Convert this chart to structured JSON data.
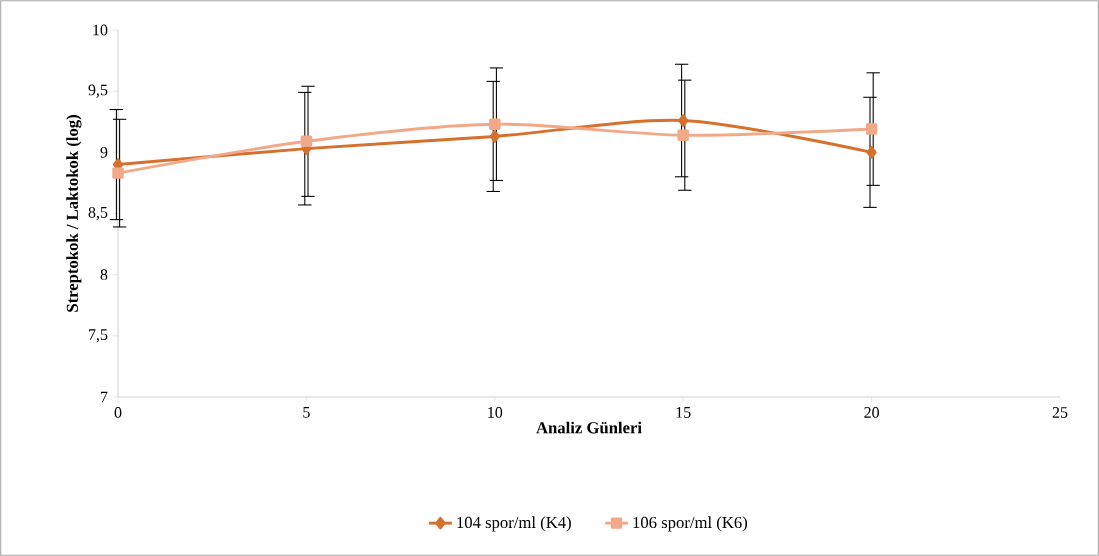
{
  "chart_data": {
    "type": "line",
    "xlabel": "Analiz Günleri",
    "ylabel": "Streptokok / Laktokok (log)",
    "x": [
      0,
      5,
      10,
      15,
      20
    ],
    "series": [
      {
        "name": "104 spor/ml (K4)",
        "color": "#d5702d",
        "marker": "diamond",
        "values": [
          8.9,
          9.03,
          9.13,
          9.26,
          9.0
        ],
        "errors": [
          0.45,
          0.46,
          0.45,
          0.46,
          0.45
        ]
      },
      {
        "name": "106 spor/ml (K6)",
        "color": "#f2a989",
        "marker": "square",
        "values": [
          8.83,
          9.09,
          9.23,
          9.14,
          9.19
        ],
        "errors": [
          0.44,
          0.45,
          0.46,
          0.45,
          0.46
        ]
      }
    ],
    "xlim": [
      0,
      25
    ],
    "xticks": [
      0,
      5,
      10,
      15,
      20,
      25
    ],
    "ylim": [
      7,
      10
    ],
    "yticks": [
      7,
      {
        "value": 7.5,
        "label": "7,5"
      },
      8,
      {
        "value": 8.5,
        "label": "8,5"
      },
      9,
      {
        "value": 9.5,
        "label": "9,5"
      },
      10
    ],
    "grid": false,
    "legend": "bottom"
  }
}
